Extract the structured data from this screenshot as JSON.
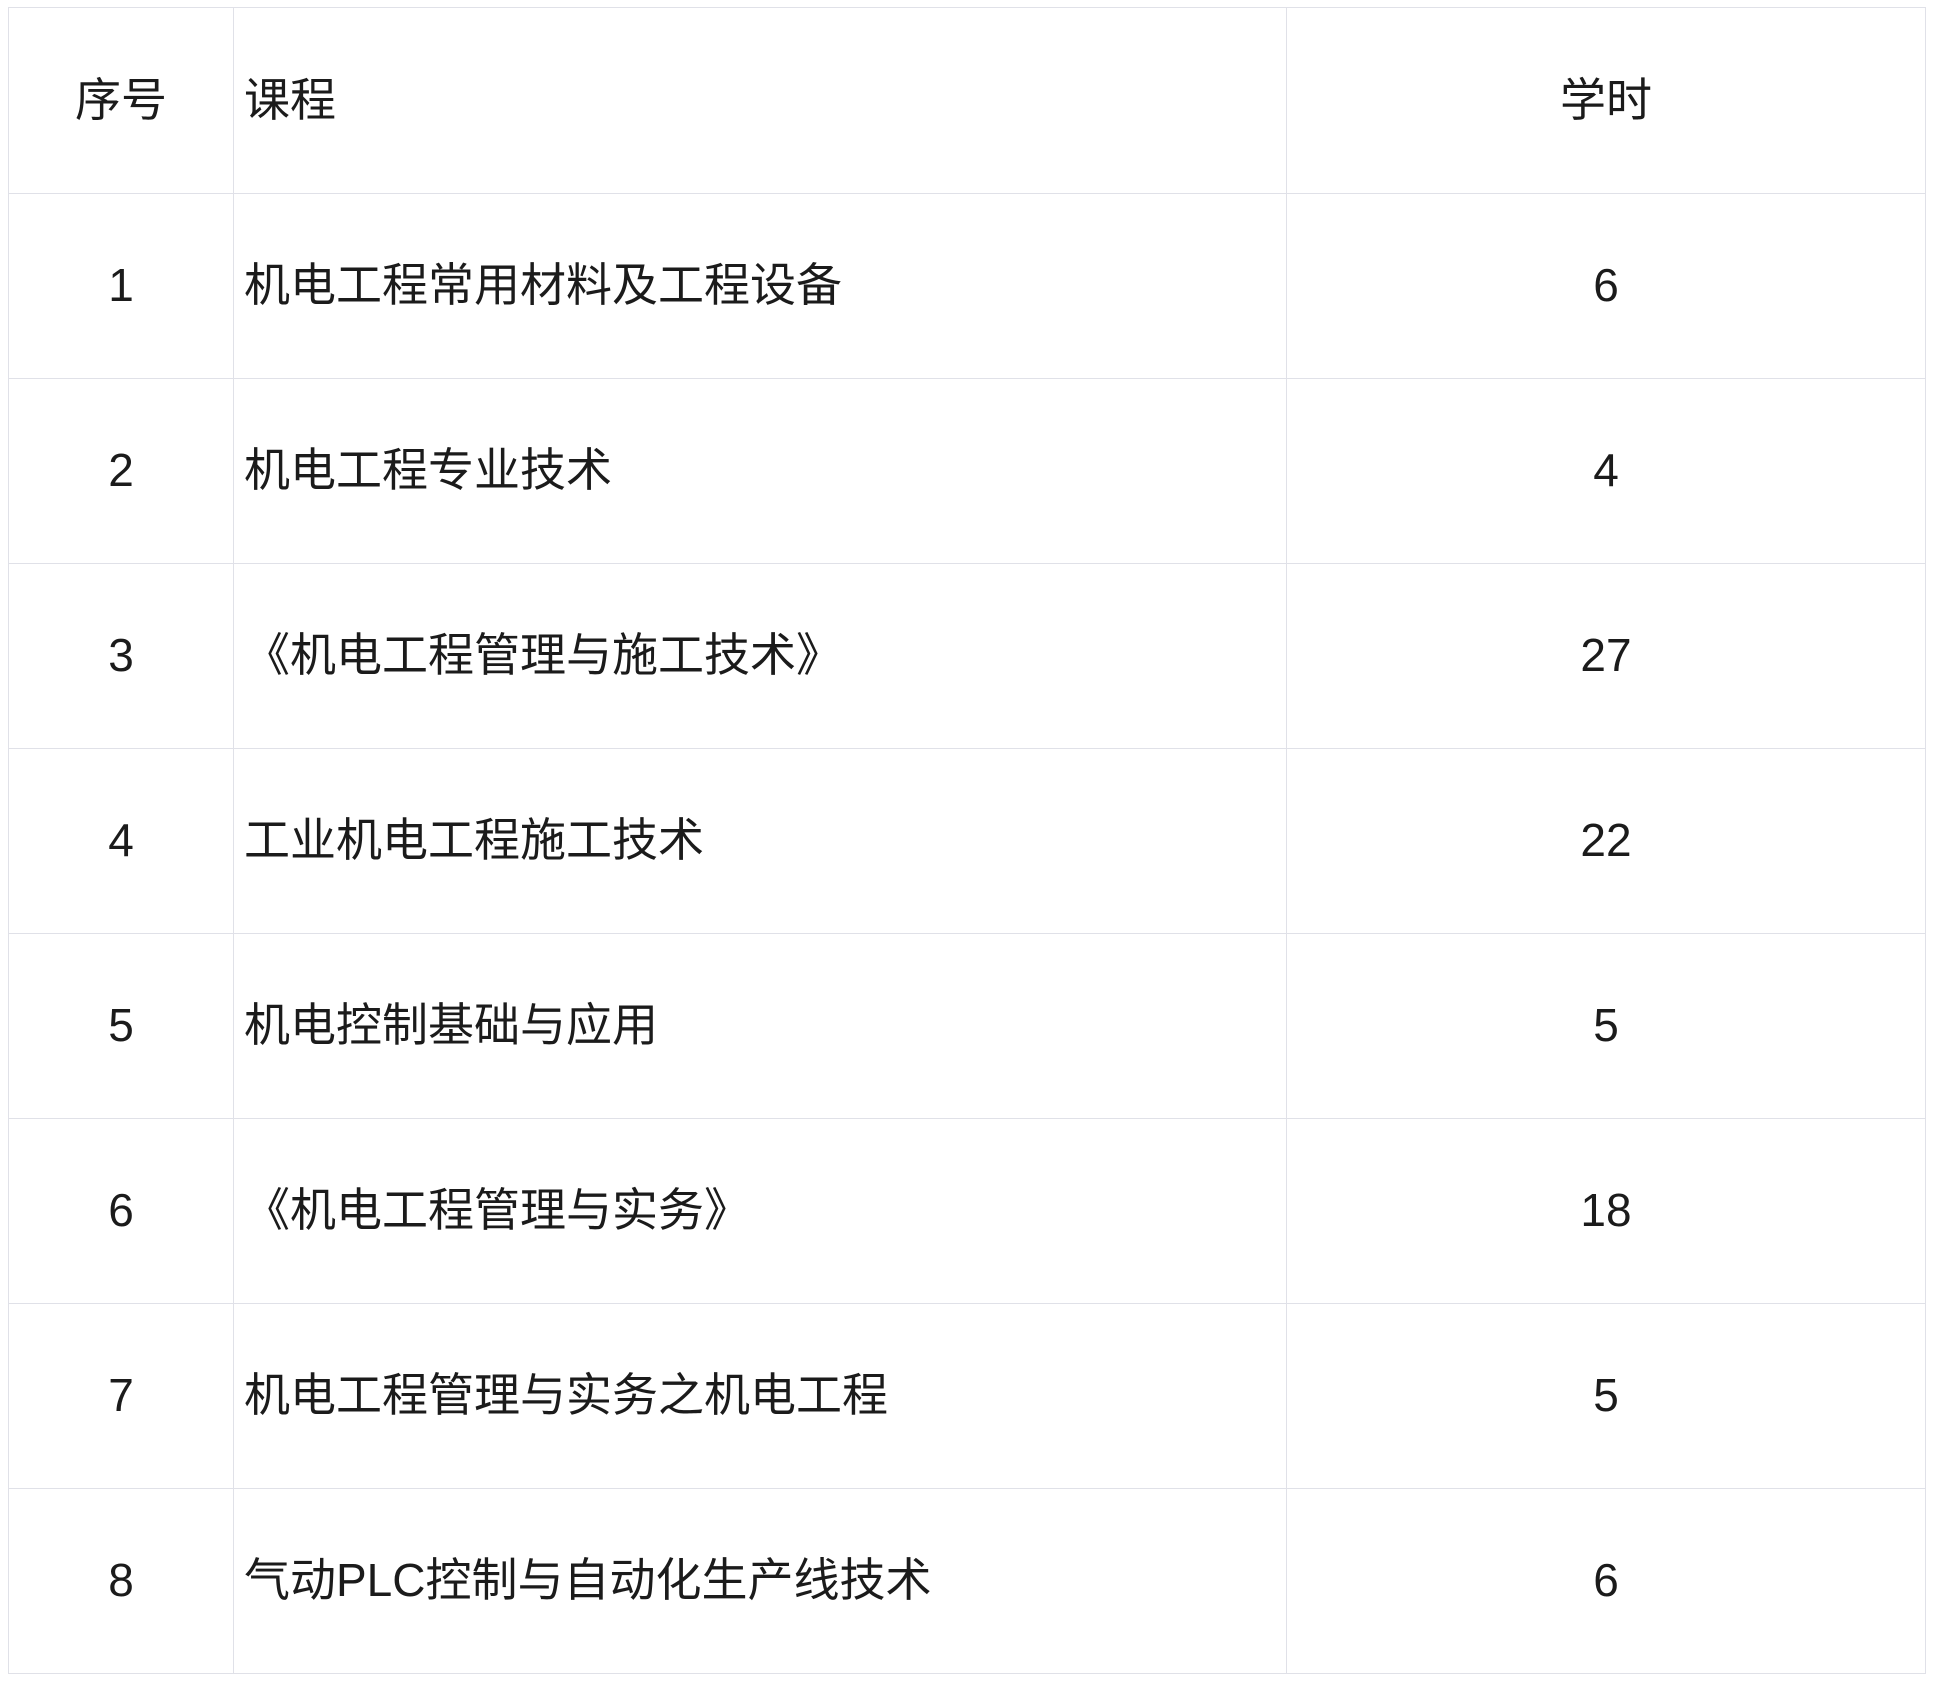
{
  "table": {
    "headers": {
      "index": "序号",
      "course": "课程",
      "hours": "学时"
    },
    "rows": [
      {
        "no": "1",
        "course": "机电工程常用材料及工程设备",
        "hours": "6"
      },
      {
        "no": "2",
        "course": "机电工程专业技术",
        "hours": "4"
      },
      {
        "no": "3",
        "course": "《机电工程管理与施工技术》",
        "hours": "27"
      },
      {
        "no": "4",
        "course": "工业机电工程施工技术",
        "hours": "22"
      },
      {
        "no": "5",
        "course": "机电控制基础与应用",
        "hours": "5"
      },
      {
        "no": "6",
        "course": "《机电工程管理与实务》",
        "hours": "18"
      },
      {
        "no": "7",
        "course": "机电工程管理与实务之机电工程",
        "hours": "5"
      },
      {
        "no": "8",
        "course": "气动PLC控制与自动化生产线技术",
        "hours": "6"
      }
    ],
    "colors": {
      "border": "#e0e1e8",
      "text": "#1b1b1b",
      "background": "#ffffff"
    }
  }
}
